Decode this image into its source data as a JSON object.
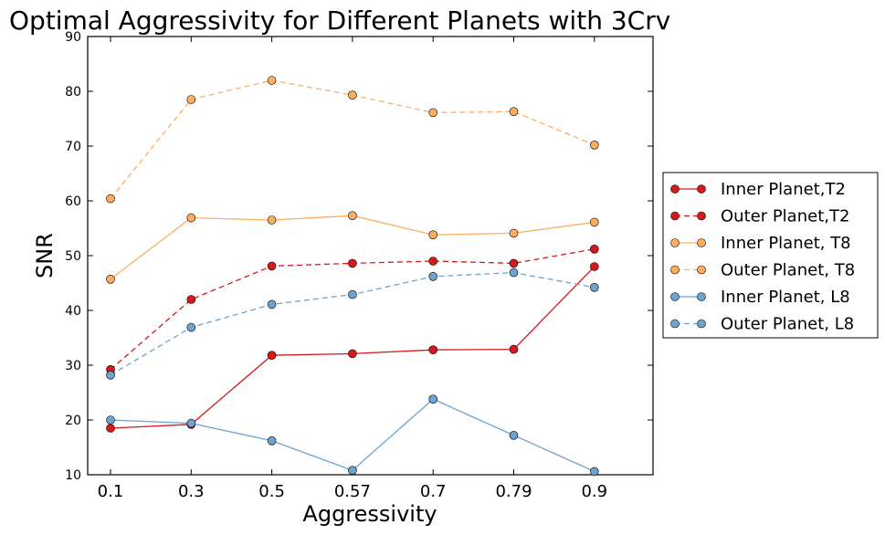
{
  "chart_data": {
    "type": "line",
    "title": "Optimal Aggressivity for Different Planets with 3Crv",
    "xlabel": "Aggressivity",
    "ylabel": "SNR",
    "categories": [
      "0.1",
      "0.3",
      "0.5",
      "0.57",
      "0.7",
      "0.79",
      "0.9"
    ],
    "ylim": [
      10,
      90
    ],
    "yticks": [
      "10",
      "20",
      "30",
      "40",
      "50",
      "60",
      "70",
      "80",
      "90"
    ],
    "legend_position": "center-right-outside",
    "series": [
      {
        "name": "Inner Planet,T2",
        "color": "#d7191c",
        "dashed": false,
        "values": [
          18.5,
          19.2,
          31.8,
          32.1,
          32.8,
          32.9,
          48.0
        ]
      },
      {
        "name": "Outer Planet,T2",
        "color": "#d7191c",
        "dashed": true,
        "values": [
          29.2,
          42.0,
          48.1,
          48.6,
          49.0,
          48.6,
          51.2
        ]
      },
      {
        "name": "Inner Planet, T8",
        "color": "#fdae61",
        "dashed": false,
        "values": [
          45.7,
          56.9,
          56.5,
          57.3,
          53.8,
          54.1,
          56.1
        ]
      },
      {
        "name": "Outer Planet, T8",
        "color": "#fdae61",
        "dashed": true,
        "values": [
          60.4,
          78.5,
          82.0,
          79.3,
          76.1,
          76.3,
          70.2
        ]
      },
      {
        "name": "Inner Planet, L8",
        "color": "#6ca3d0",
        "dashed": false,
        "values": [
          20.0,
          19.4,
          16.2,
          10.8,
          23.8,
          17.2,
          10.6
        ]
      },
      {
        "name": "Outer Planet, L8",
        "color": "#6ca3d0",
        "dashed": true,
        "values": [
          28.2,
          36.9,
          41.1,
          42.9,
          46.2,
          46.9,
          44.2
        ]
      }
    ]
  }
}
